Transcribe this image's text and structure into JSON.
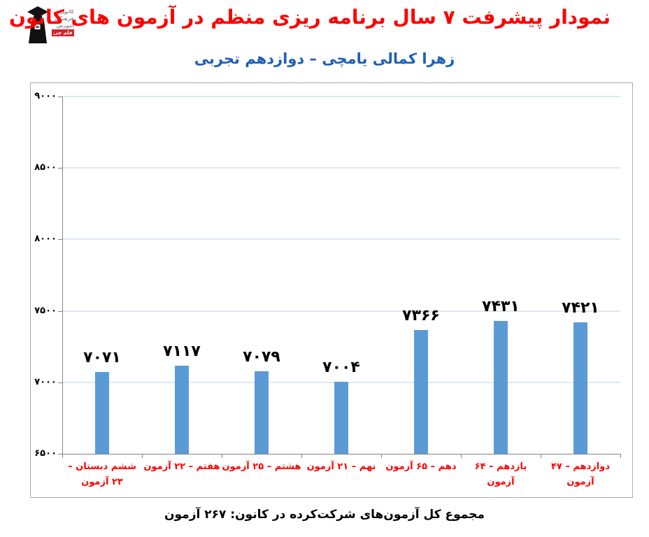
{
  "header": {
    "title": "نمودار پیشرفت ۷ سال برنامه ریزی منظم در آزمون های کانون",
    "subtitle": "زهرا کمالی یامچی – دوازدهم تجربی",
    "logo": {
      "lines": [
        "کانون",
        "فرهنگی",
        "آموزش",
        "قلم چی"
      ]
    }
  },
  "chart_data": {
    "type": "bar",
    "categories": [
      "ششم دبستان – ۲۳ آزمون",
      "هفتم – ۲۲ آزمون",
      "هشتم – ۲۵ آزمون",
      "نهم – ۲۱ آزمون",
      "دهم – ۶۵ آزمون",
      "یازدهم – ۶۴ آزمون",
      "دوازدهم – ۴۷ آزمون"
    ],
    "values": [
      7071,
      7117,
      7079,
      7004,
      7366,
      7431,
      7421
    ],
    "value_labels": [
      "۷۰۷۱",
      "۷۱۱۷",
      "۷۰۷۹",
      "۷۰۰۴",
      "۷۳۶۶",
      "۷۴۳۱",
      "۷۴۲۱"
    ],
    "y_ticks": [
      6500,
      7000,
      7500,
      8000,
      8500,
      9000
    ],
    "y_tick_labels": [
      "۶۵۰۰",
      "۷۰۰۰",
      "۷۵۰۰",
      "۸۰۰۰",
      "۸۵۰۰",
      "۹۰۰۰"
    ],
    "ylim": [
      6500,
      9000
    ],
    "grid": true,
    "legend": "none",
    "title": "نمودار پیشرفت ۷ سال برنامه ریزی منظم در آزمون های کانون",
    "xlabel": "",
    "ylabel": "",
    "bar_color": "#5b9bd5",
    "gridline_color": "#dce8f6",
    "axis_color": "#848484",
    "category_label_color": "#ff0000",
    "value_label_color": "#000000"
  },
  "footer": {
    "caption": "مجموع کل آزمون‌های شرکت‌کرده در کانون: ۲۶۷ آزمون"
  },
  "colors": {
    "title": "#ff0000",
    "subtitle": "#1c5fba"
  }
}
